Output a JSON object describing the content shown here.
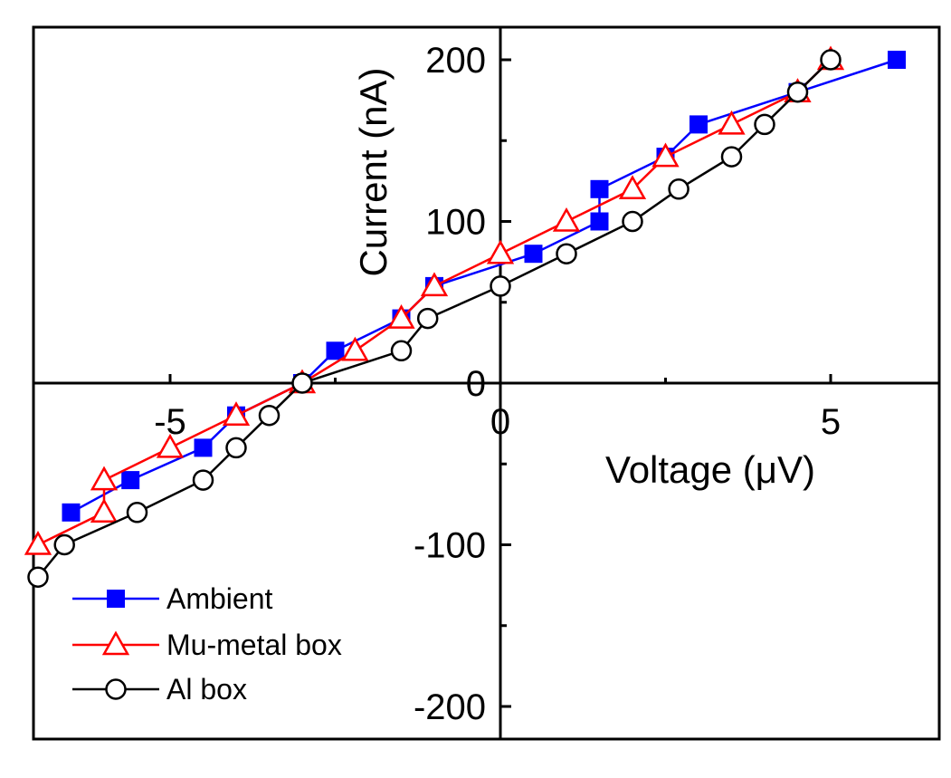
{
  "chart_data": {
    "type": "line",
    "title": "",
    "xlabel": "Voltage (μV)",
    "ylabel": "Current (nA)",
    "xlim": [
      -7.1,
      6.2
    ],
    "ylim": [
      -220,
      220
    ],
    "x_ticks": [
      -5,
      0,
      5
    ],
    "x_tick_labels": [
      "-5",
      "0",
      "5"
    ],
    "y_ticks": [
      -200,
      -100,
      0,
      100,
      200
    ],
    "y_tick_labels": [
      "-200",
      "-100",
      "0",
      "100",
      "200"
    ],
    "grid": false,
    "legend_position": "bottom-left",
    "series": [
      {
        "name": "Ambient",
        "color": "#0000ff",
        "marker": "square-filled",
        "x": [
          -6.5,
          -5.6,
          -4.5,
          -4.0,
          -3.0,
          -2.5,
          -1.5,
          -1.0,
          0.5,
          1.5,
          1.5,
          2.5,
          3.0,
          4.5,
          6.0
        ],
        "y": [
          -80,
          -60,
          -40,
          -20,
          0,
          20,
          40,
          60,
          80,
          100,
          120,
          140,
          160,
          180,
          200
        ]
      },
      {
        "name": "Mu-metal box",
        "color": "#ff0000",
        "marker": "triangle-open",
        "x": [
          -7.0,
          -6.0,
          -6.0,
          -5.0,
          -4.0,
          -3.0,
          -2.2,
          -1.5,
          -1.0,
          0.0,
          1.0,
          2.0,
          2.5,
          3.5,
          4.5,
          5.0
        ],
        "y": [
          -100,
          -80,
          -60,
          -40,
          -20,
          0,
          20,
          40,
          60,
          80,
          100,
          120,
          140,
          160,
          180,
          200
        ]
      },
      {
        "name": "Al box",
        "color": "#000000",
        "marker": "circle-open",
        "x": [
          -7.0,
          -6.6,
          -5.5,
          -4.5,
          -4.0,
          -3.5,
          -3.0,
          -1.5,
          -1.1,
          0.0,
          1.0,
          2.0,
          2.7,
          3.5,
          4.0,
          4.5,
          5.0
        ],
        "y": [
          -120,
          -100,
          -80,
          -60,
          -40,
          -20,
          0,
          20,
          40,
          60,
          80,
          100,
          120,
          140,
          160,
          180,
          200
        ]
      }
    ]
  }
}
